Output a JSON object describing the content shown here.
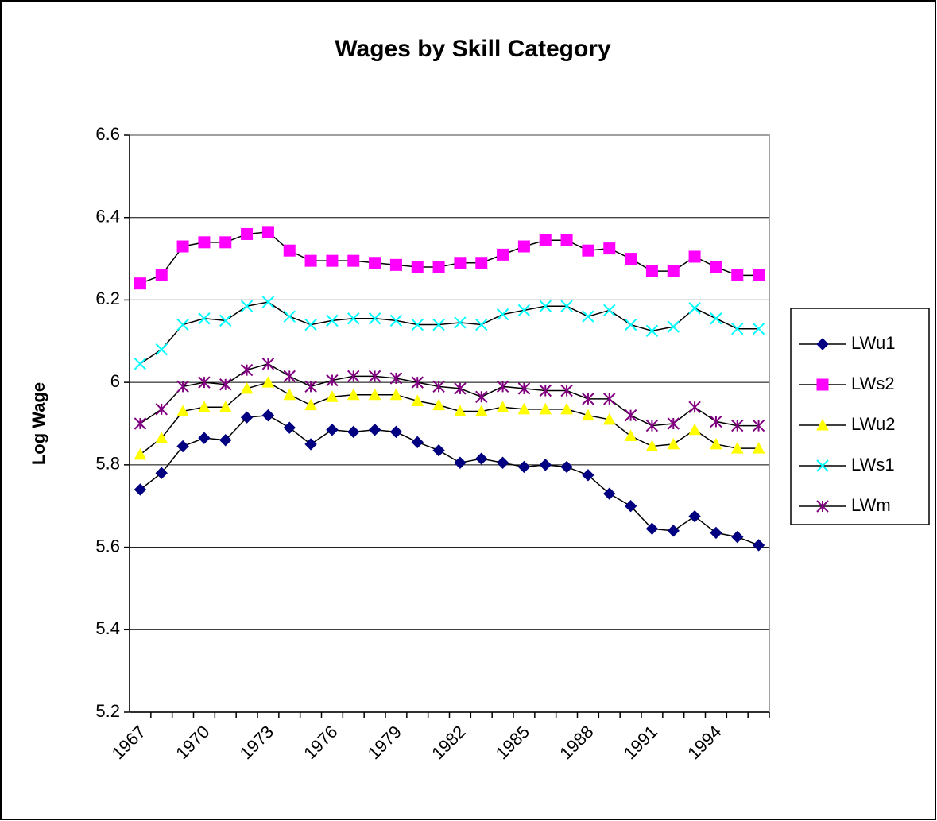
{
  "chart_data": {
    "type": "line",
    "title": "Wages by Skill Category",
    "y_label": "Log Wage",
    "categories": [
      "1967",
      null,
      null,
      "1970",
      null,
      null,
      "1973",
      null,
      null,
      "1976",
      null,
      null,
      "1979",
      null,
      null,
      "1982",
      null,
      null,
      "1985",
      null,
      null,
      "1988",
      null,
      null,
      "1991",
      null,
      null,
      "1994",
      null,
      null
    ],
    "ylim": [
      5.2,
      6.6
    ],
    "yticks": [
      5.2,
      5.4,
      5.6,
      5.8,
      6,
      6.2,
      6.4,
      6.6
    ],
    "grid": true,
    "legend": "right",
    "line_color": "#000000",
    "series": [
      {
        "name": "LWu1",
        "color": "#000080",
        "marker": "diamond",
        "values": [
          5.74,
          5.78,
          5.845,
          5.865,
          5.86,
          5.915,
          5.92,
          5.89,
          5.85,
          5.885,
          5.88,
          5.885,
          5.88,
          5.855,
          5.835,
          5.805,
          5.815,
          5.805,
          5.795,
          5.8,
          5.795,
          5.775,
          5.73,
          5.7,
          5.645,
          5.64,
          5.675,
          5.635,
          5.625,
          5.605
        ]
      },
      {
        "name": "LWs2",
        "color": "#ff00ff",
        "marker": "square",
        "values": [
          6.24,
          6.26,
          6.33,
          6.34,
          6.34,
          6.36,
          6.365,
          6.32,
          6.295,
          6.295,
          6.295,
          6.29,
          6.285,
          6.28,
          6.28,
          6.29,
          6.29,
          6.31,
          6.33,
          6.345,
          6.345,
          6.32,
          6.325,
          6.3,
          6.27,
          6.27,
          6.305,
          6.28,
          6.26,
          6.26
        ]
      },
      {
        "name": "LWu2",
        "color": "#ffff00",
        "marker": "triangle",
        "values": [
          5.825,
          5.865,
          5.93,
          5.94,
          5.94,
          5.985,
          6.0,
          5.97,
          5.945,
          5.965,
          5.97,
          5.97,
          5.97,
          5.955,
          5.945,
          5.93,
          5.93,
          5.94,
          5.935,
          5.935,
          5.935,
          5.92,
          5.91,
          5.87,
          5.845,
          5.85,
          5.885,
          5.85,
          5.84,
          5.84
        ]
      },
      {
        "name": "LWs1",
        "color": "#00ffff",
        "marker": "x",
        "values": [
          6.045,
          6.08,
          6.14,
          6.155,
          6.15,
          6.185,
          6.195,
          6.16,
          6.14,
          6.15,
          6.155,
          6.155,
          6.15,
          6.14,
          6.14,
          6.145,
          6.14,
          6.165,
          6.175,
          6.185,
          6.185,
          6.16,
          6.175,
          6.14,
          6.125,
          6.135,
          6.18,
          6.155,
          6.13,
          6.13
        ]
      },
      {
        "name": "LWm",
        "color": "#800080",
        "marker": "star",
        "values": [
          5.9,
          5.935,
          5.99,
          6.0,
          5.995,
          6.03,
          6.045,
          6.015,
          5.99,
          6.005,
          6.015,
          6.015,
          6.01,
          6.0,
          5.99,
          5.985,
          5.965,
          5.99,
          5.985,
          5.98,
          5.98,
          5.96,
          5.96,
          5.92,
          5.895,
          5.9,
          5.94,
          5.905,
          5.895,
          5.895
        ]
      }
    ]
  }
}
